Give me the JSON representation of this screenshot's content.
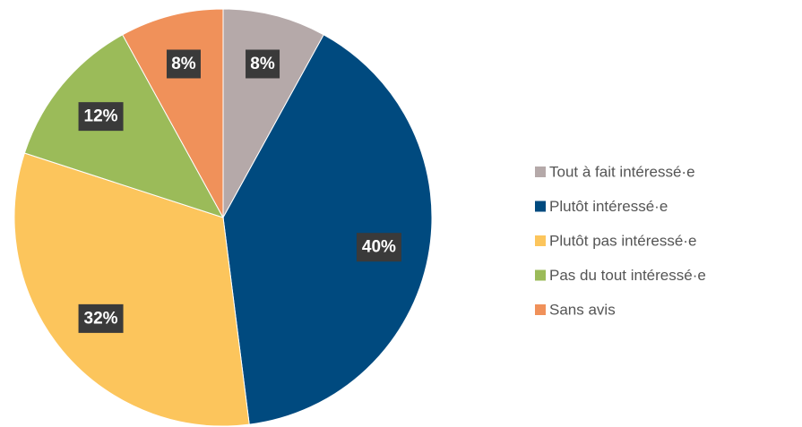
{
  "chart_data": {
    "type": "pie",
    "categories": [
      "Tout à fait intéressé·e",
      "Plutôt intéressé·e",
      "Plutôt pas intéressé·e",
      "Pas du tout intéressé·e",
      "Sans avis"
    ],
    "values": [
      8,
      40,
      32,
      12,
      8
    ],
    "value_labels": [
      "8%",
      "40%",
      "32%",
      "12%",
      "8%"
    ],
    "colors": [
      "#b5a9a9",
      "#004a7f",
      "#fcc55c",
      "#9bbb59",
      "#f0915a"
    ],
    "legend": "right"
  }
}
